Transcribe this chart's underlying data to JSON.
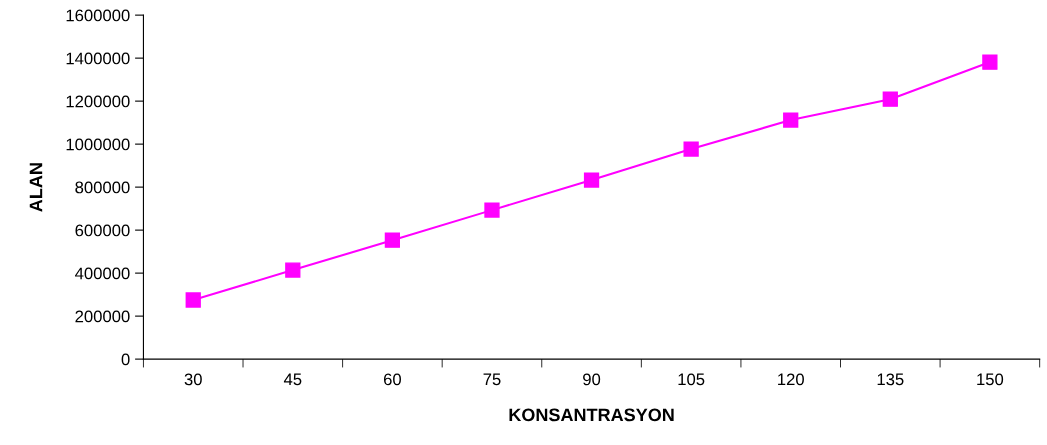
{
  "chart_data": {
    "type": "line",
    "xlabel": "KONSANTRASYON",
    "ylabel": "ALAN",
    "categories": [
      "30",
      "45",
      "60",
      "75",
      "90",
      "105",
      "120",
      "135",
      "150"
    ],
    "series": [
      {
        "color": "#ff00ff",
        "values": [
          275000,
          414000,
          553000,
          693000,
          833000,
          977000,
          1112000,
          1209000,
          1381000
        ]
      }
    ],
    "ylim": [
      0,
      1600000
    ],
    "yticks": [
      0,
      200000,
      400000,
      600000,
      800000,
      1000000,
      1200000,
      1400000,
      1600000
    ],
    "grid": false,
    "legend": false,
    "marker": "square",
    "line_style": "solid"
  }
}
